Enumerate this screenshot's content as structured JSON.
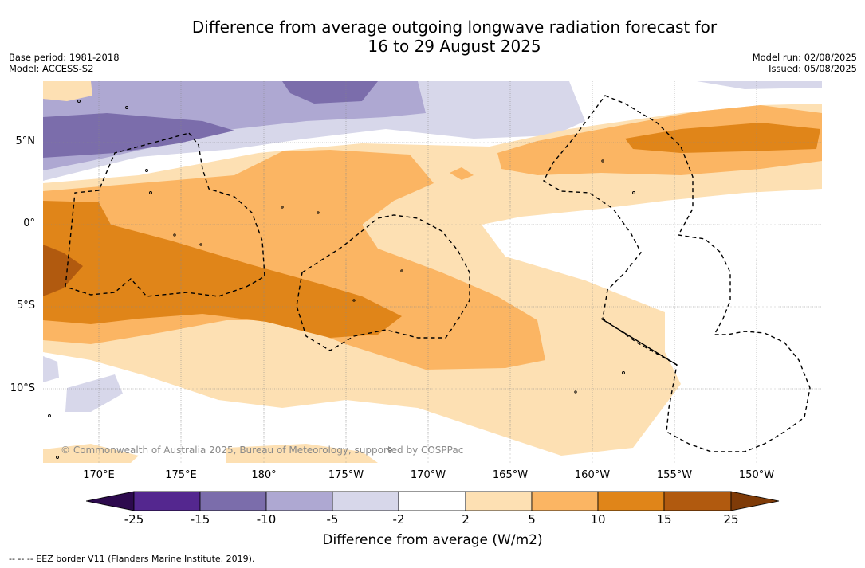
{
  "title_line1": "Difference from average outgoing longwave radiation forecast for",
  "title_line2": "16 to 29 August 2025",
  "base_period": "Base period: 1981-2018",
  "model": "Model: ACCESS-S2",
  "model_run": "Model run: 02/08/2025",
  "issued": "Issued: 05/08/2025",
  "lat_labels": [
    "5°N",
    "0°",
    "5°S",
    "10°S"
  ],
  "lon_labels": [
    "170°E",
    "175°E",
    "180°",
    "175°W",
    "170°W",
    "165°W",
    "160°W",
    "155°W",
    "150°W"
  ],
  "copyright": "© Commonwealth of Australia 2025, Bureau of Meteorology, supported by COSPPac",
  "colorbar": {
    "ticks": [
      "-25",
      "-15",
      "-10",
      "-5",
      "-2",
      "2",
      "5",
      "10",
      "15",
      "25"
    ],
    "colors": [
      "#2d0a4e",
      "#54278f",
      "#7b6dab",
      "#aea8d2",
      "#d7d7ea",
      "#ffffff",
      "#fde0b3",
      "#fbb563",
      "#e08519",
      "#b15a0f",
      "#7f3b08"
    ],
    "label": "Difference from average (W/m2)"
  },
  "footnote": "--  --  -- EEZ border V11 (Flanders Marine Institute, 2019)."
}
